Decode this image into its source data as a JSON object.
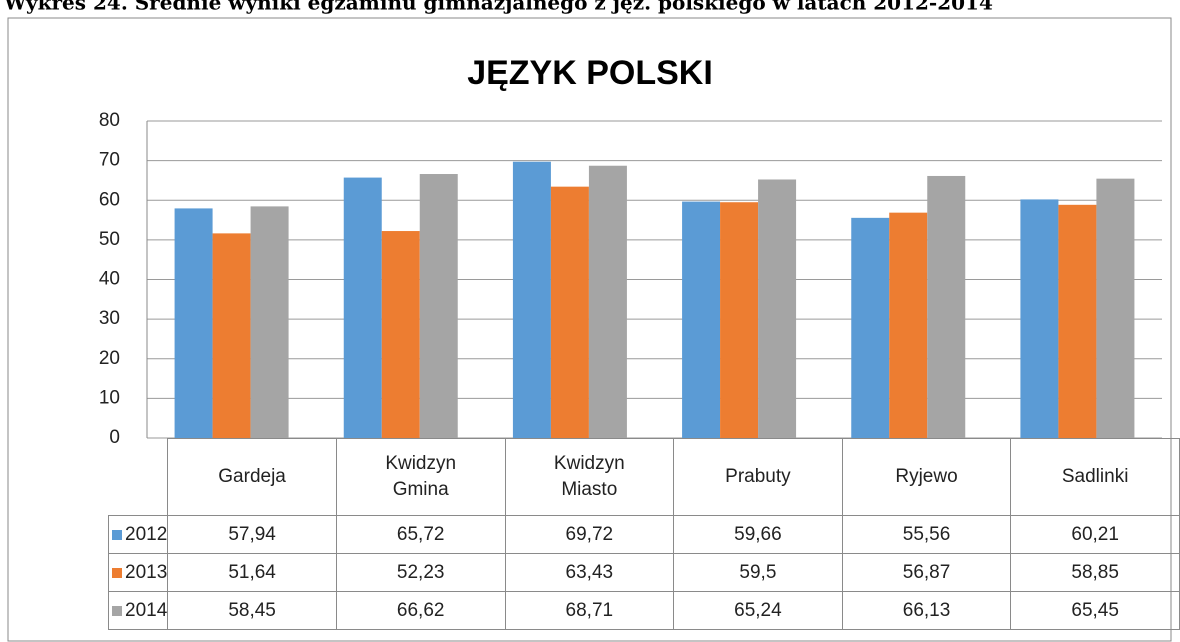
{
  "caption": "Wykres 24. Średnie wyniki egzaminu gimnazjalnego z jęz. polskiego w latach 2012-2014",
  "chart_data": {
    "type": "bar",
    "title": "JĘZYK POLSKI",
    "categories": [
      "Gardeja",
      "Kwidzyn Gmina",
      "Kwidzyn Miasto",
      "Prabuty",
      "Ryjewo",
      "Sadlinki"
    ],
    "series": [
      {
        "name": "2012",
        "color": "#5b9bd5",
        "values": [
          57.94,
          65.72,
          69.72,
          59.66,
          55.56,
          60.21
        ],
        "value_labels": [
          "57,94",
          "65,72",
          "69,72",
          "59,66",
          "55,56",
          "60,21"
        ]
      },
      {
        "name": "2013",
        "color": "#ed7d31",
        "values": [
          51.64,
          52.23,
          63.43,
          59.5,
          56.87,
          58.85
        ],
        "value_labels": [
          "51,64",
          "52,23",
          "63,43",
          "59,5",
          "56,87",
          "58,85"
        ]
      },
      {
        "name": "2014",
        "color": "#a5a5a5",
        "values": [
          58.45,
          66.62,
          68.71,
          65.24,
          66.13,
          65.45
        ],
        "value_labels": [
          "58,45",
          "66,62",
          "68,71",
          "65,24",
          "66,13",
          "65,45"
        ]
      }
    ],
    "ylim": [
      0,
      80
    ],
    "yticks": [
      0,
      10,
      20,
      30,
      40,
      50,
      60,
      70,
      80
    ],
    "grid": true,
    "legend": "table"
  }
}
